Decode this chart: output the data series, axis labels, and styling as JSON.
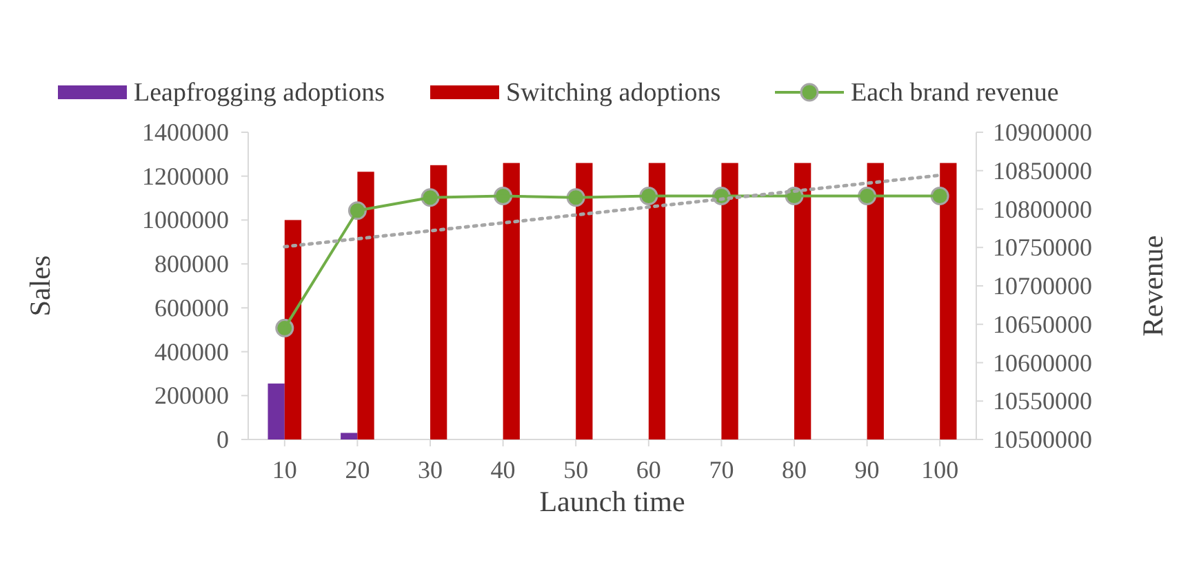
{
  "chart_data": {
    "type": "bar",
    "xlabel": "Launch time",
    "ylabel": "Sales",
    "y2label": "Revenue",
    "x": [
      10,
      20,
      30,
      40,
      50,
      60,
      70,
      80,
      90,
      100
    ],
    "xlim": [
      5,
      105
    ],
    "xticks": [
      10,
      20,
      30,
      40,
      50,
      60,
      70,
      80,
      90,
      100
    ],
    "ylim": [
      0,
      1400000
    ],
    "yticks": [
      0,
      200000,
      400000,
      600000,
      800000,
      1000000,
      1200000,
      1400000
    ],
    "y2lim": [
      10500000,
      10900000
    ],
    "y2ticks": [
      10500000,
      10550000,
      10600000,
      10650000,
      10700000,
      10750000,
      10800000,
      10850000,
      10900000
    ],
    "grid": false,
    "legend": "top",
    "series": [
      {
        "name": "Leapfrogging adoptions",
        "color": "#7030a0",
        "values": [
          255000,
          30000,
          0,
          0,
          0,
          0,
          0,
          0,
          0,
          0
        ]
      },
      {
        "name": "Switching adoptions",
        "color": "#c00000",
        "values": [
          1000000,
          1220000,
          1250000,
          1260000,
          1260000,
          1260000,
          1260000,
          1260000,
          1260000,
          1260000
        ]
      },
      {
        "name": "Each brand revenue",
        "type": "line",
        "axis": "y2",
        "color": "#70ad47",
        "marker": "circle",
        "values": [
          10645000,
          10798000,
          10815000,
          10817000,
          10815000,
          10817000,
          10817000,
          10817000,
          10817000,
          10817000
        ]
      },
      {
        "type": "line",
        "axis": "y2",
        "color": "#a6a6a6",
        "line_style": "dotted",
        "marker": "none",
        "x": [
          10,
          100
        ],
        "values": [
          10751000,
          10844000
        ]
      }
    ]
  }
}
